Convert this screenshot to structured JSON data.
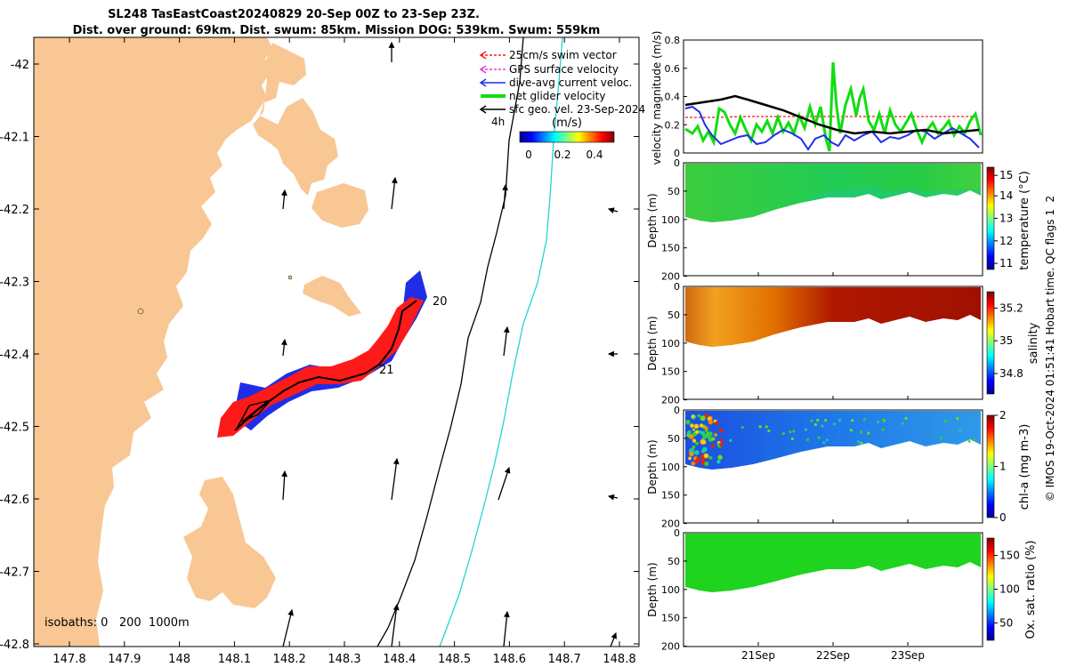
{
  "title": {
    "line1": "SL248 TasEastCoast20240829 20-Sep 00Z to 23-Sep 23Z.",
    "line2": "Dist. over ground: 69km. Dist. swum: 85km. Mission DOG: 539km. Swum: 559km"
  },
  "colors": {
    "land": "#f9c794",
    "swim": "#ff1a1a",
    "gps": "#e040e0",
    "current": "#1f2ee6",
    "net": "#11dd11",
    "geo": "#000000",
    "isobath200": "#000000",
    "isobath1000": "#22d4d4"
  },
  "map": {
    "x_ticks": [
      "147.8",
      "147.9",
      "148",
      "148.1",
      "148.2",
      "148.3",
      "148.4",
      "148.5",
      "148.6",
      "148.7",
      "148.8"
    ],
    "y_ticks": [
      "-42",
      "-42.1",
      "-42.2",
      "-42.3",
      "-42.4",
      "-42.5",
      "-42.6",
      "-42.7",
      "-42.8"
    ],
    "legend": [
      {
        "key": "swim",
        "label": "25cm/s swim vector"
      },
      {
        "key": "gps",
        "label": "GPS surface velocity"
      },
      {
        "key": "current",
        "label": "dive-avg current veloc."
      },
      {
        "key": "net",
        "label": "net glider velocity"
      },
      {
        "key": "geo",
        "label": "sfc geo. vel. 23-Sep-2024"
      }
    ],
    "time_label": "4h",
    "colorbar": {
      "title": "(m/s)",
      "ticks": [
        "0",
        "0.2",
        "0.4"
      ]
    },
    "day_labels": [
      "20",
      "21"
    ],
    "isobath_label": "isobaths: 0   200  1000m"
  },
  "panels": {
    "velocity": {
      "ylabel": "velocity magnitude (m/s)",
      "y_ticks": [
        "0",
        "0.2",
        "0.4",
        "0.6",
        "0.8"
      ]
    },
    "depth_ylabel": "Depth (m)",
    "depth_ticks": [
      "0",
      "50",
      "100",
      "150",
      "200"
    ],
    "temperature": {
      "label": "temperature (°C)",
      "ticks": [
        "11",
        "12",
        "13",
        "14",
        "15"
      ]
    },
    "salinity": {
      "label": "salinity",
      "ticks": [
        "34.8",
        "35",
        "35.2"
      ]
    },
    "chla": {
      "label": "chl-a (mg m-3)",
      "ticks": [
        "0",
        "1",
        "2"
      ]
    },
    "oxygen": {
      "label": "Ox. sat. ratio (%)",
      "ticks": [
        "50",
        "100",
        "150"
      ]
    },
    "x_ticks": [
      "21Sep",
      "22Sep",
      "23Sep"
    ]
  },
  "footer": "© IMOS 19-Oct-2024 01:51:41 Hobart time. QC flags 1  2"
}
